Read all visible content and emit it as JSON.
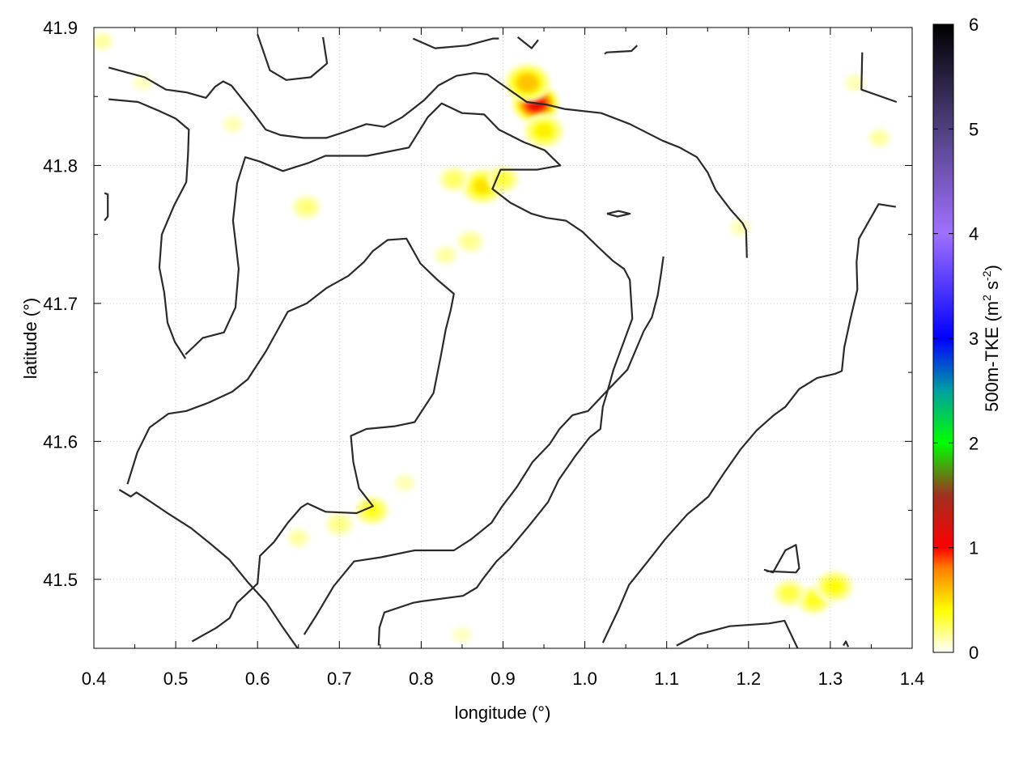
{
  "chart_data": {
    "type": "heatmap",
    "xlabel": "longitude (°)",
    "ylabel": "latitude (°)",
    "colorbar_label": "500m-TKE (m² s⁻²)",
    "colorbar_label_parts": {
      "prefix": "500m-TKE (m",
      "sup1": "2",
      "middle": " s",
      "sup2": "-2",
      "suffix": ")"
    },
    "xlim": [
      0.4,
      1.4
    ],
    "ylim": [
      41.45,
      41.9
    ],
    "x_ticks": [
      "0.4",
      "0.5",
      "0.6",
      "0.7",
      "0.8",
      "0.9",
      "1.0",
      "1.1",
      "1.2",
      "1.3",
      "1.4"
    ],
    "y_ticks": [
      "41.5",
      "41.6",
      "41.7",
      "41.8",
      "41.9"
    ],
    "colorbar_range": [
      0,
      6
    ],
    "colorbar_ticks": [
      "0",
      "1",
      "2",
      "3",
      "4",
      "5",
      "6"
    ],
    "grid": true,
    "colormap_stops": [
      {
        "v": 0.0,
        "color": "#ffffff"
      },
      {
        "v": 0.4,
        "color": "#ffff00"
      },
      {
        "v": 0.8,
        "color": "#ff8000"
      },
      {
        "v": 1.0,
        "color": "#ff0000"
      },
      {
        "v": 1.5,
        "color": "#a03020"
      },
      {
        "v": 2.0,
        "color": "#00ff00"
      },
      {
        "v": 2.5,
        "color": "#00a0a0"
      },
      {
        "v": 3.0,
        "color": "#0000ff"
      },
      {
        "v": 4.0,
        "color": "#a070ff"
      },
      {
        "v": 5.0,
        "color": "#504080"
      },
      {
        "v": 6.0,
        "color": "#000000"
      }
    ],
    "tke_hotspots": [
      {
        "lon": 0.94,
        "lat": 41.845,
        "tke": 1.1
      },
      {
        "lon": 0.93,
        "lat": 41.86,
        "tke": 0.6
      },
      {
        "lon": 0.95,
        "lat": 41.825,
        "tke": 0.45
      },
      {
        "lon": 0.875,
        "lat": 41.785,
        "tke": 0.5
      },
      {
        "lon": 0.84,
        "lat": 41.79,
        "tke": 0.25
      },
      {
        "lon": 0.9,
        "lat": 41.79,
        "tke": 0.3
      },
      {
        "lon": 0.86,
        "lat": 41.745,
        "tke": 0.18
      },
      {
        "lon": 0.83,
        "lat": 41.735,
        "tke": 0.15
      },
      {
        "lon": 0.74,
        "lat": 41.55,
        "tke": 0.35
      },
      {
        "lon": 0.7,
        "lat": 41.54,
        "tke": 0.2
      },
      {
        "lon": 0.65,
        "lat": 41.53,
        "tke": 0.15
      },
      {
        "lon": 0.78,
        "lat": 41.57,
        "tke": 0.12
      },
      {
        "lon": 1.28,
        "lat": 41.485,
        "tke": 0.35
      },
      {
        "lon": 1.25,
        "lat": 41.49,
        "tke": 0.3
      },
      {
        "lon": 1.305,
        "lat": 41.495,
        "tke": 0.4
      },
      {
        "lon": 1.36,
        "lat": 41.82,
        "tke": 0.15
      },
      {
        "lon": 1.33,
        "lat": 41.86,
        "tke": 0.12
      },
      {
        "lon": 0.41,
        "lat": 41.89,
        "tke": 0.15
      },
      {
        "lon": 0.57,
        "lat": 41.83,
        "tke": 0.12
      },
      {
        "lon": 0.66,
        "lat": 41.77,
        "tke": 0.22
      },
      {
        "lon": 1.19,
        "lat": 41.755,
        "tke": 0.12
      },
      {
        "lon": 0.85,
        "lat": 41.46,
        "tke": 0.1
      },
      {
        "lon": 0.46,
        "lat": 41.86,
        "tke": 0.1
      }
    ],
    "contours": [
      [
        [
          0.418,
          41.871
        ],
        [
          0.462,
          41.864
        ],
        [
          0.488,
          41.855
        ],
        [
          0.513,
          41.853
        ],
        [
          0.537,
          41.849
        ],
        [
          0.548,
          41.857
        ],
        [
          0.558,
          41.861
        ],
        [
          0.568,
          41.858
        ],
        [
          0.595,
          41.838
        ],
        [
          0.61,
          41.826
        ],
        [
          0.628,
          41.822
        ],
        [
          0.656,
          41.82
        ],
        [
          0.684,
          41.82
        ],
        [
          0.705,
          41.824
        ],
        [
          0.733,
          41.83
        ],
        [
          0.755,
          41.828
        ],
        [
          0.777,
          41.835
        ],
        [
          0.803,
          41.847
        ],
        [
          0.821,
          41.858
        ],
        [
          0.843,
          41.865
        ],
        [
          0.865,
          41.867
        ],
        [
          0.881,
          41.866
        ],
        [
          0.905,
          41.856
        ],
        [
          0.929,
          41.846
        ],
        [
          0.954,
          41.844
        ],
        [
          0.975,
          41.841
        ],
        [
          1.02,
          41.838
        ],
        [
          1.055,
          41.83
        ],
        [
          1.095,
          41.818
        ],
        [
          1.116,
          41.813
        ],
        [
          1.137,
          41.806
        ],
        [
          1.15,
          41.795
        ],
        [
          1.16,
          41.782
        ],
        [
          1.178,
          41.768
        ],
        [
          1.193,
          41.758
        ],
        [
          1.197,
          41.753
        ],
        [
          1.198,
          41.733
        ]
      ],
      [
        [
          0.418,
          41.848
        ],
        [
          0.454,
          41.846
        ],
        [
          0.478,
          41.84
        ],
        [
          0.5,
          41.834
        ],
        [
          0.516,
          41.826
        ],
        [
          0.515,
          41.808
        ],
        [
          0.513,
          41.788
        ],
        [
          0.498,
          41.771
        ],
        [
          0.483,
          41.75
        ],
        [
          0.48,
          41.726
        ],
        [
          0.486,
          41.708
        ],
        [
          0.49,
          41.686
        ],
        [
          0.499,
          41.672
        ],
        [
          0.512,
          41.66
        ]
      ],
      [
        [
          0.512,
          41.663
        ],
        [
          0.533,
          41.675
        ],
        [
          0.559,
          41.679
        ],
        [
          0.573,
          41.697
        ],
        [
          0.577,
          41.725
        ],
        [
          0.57,
          41.76
        ],
        [
          0.575,
          41.787
        ],
        [
          0.585,
          41.806
        ],
        [
          0.602,
          41.803
        ],
        [
          0.631,
          41.796
        ],
        [
          0.663,
          41.802
        ],
        [
          0.683,
          41.807
        ],
        [
          0.734,
          41.807
        ],
        [
          0.785,
          41.813
        ],
        [
          0.808,
          41.835
        ],
        [
          0.825,
          41.845
        ],
        [
          0.85,
          41.838
        ],
        [
          0.877,
          41.837
        ],
        [
          0.895,
          41.826
        ],
        [
          0.925,
          41.817
        ],
        [
          0.951,
          41.811
        ],
        [
          0.97,
          41.8
        ],
        [
          0.942,
          41.797
        ],
        [
          0.897,
          41.797
        ],
        [
          0.887,
          41.783
        ],
        [
          0.909,
          41.773
        ],
        [
          0.935,
          41.765
        ],
        [
          0.953,
          41.762
        ],
        [
          0.977,
          41.76
        ],
        [
          0.997,
          41.752
        ],
        [
          1.016,
          41.741
        ],
        [
          1.034,
          41.731
        ],
        [
          1.048,
          41.725
        ],
        [
          1.055,
          41.717
        ],
        [
          1.058,
          41.689
        ],
        [
          1.045,
          41.668
        ],
        [
          1.035,
          41.652
        ],
        [
          1.027,
          41.635
        ],
        [
          1.022,
          41.625
        ],
        [
          1.019,
          41.609
        ],
        [
          1.006,
          41.603
        ],
        [
          0.989,
          41.59
        ],
        [
          0.968,
          41.572
        ],
        [
          0.955,
          41.556
        ],
        [
          0.932,
          41.539
        ],
        [
          0.908,
          41.522
        ],
        [
          0.892,
          41.513
        ],
        [
          0.875,
          41.5
        ],
        [
          0.868,
          41.494
        ],
        [
          0.851,
          41.488
        ],
        [
          0.8,
          41.484
        ],
        [
          0.79,
          41.483
        ],
        [
          0.755,
          41.476
        ],
        [
          0.749,
          41.465
        ],
        [
          0.748,
          41.452
        ]
      ],
      [
        [
          0.431,
          41.565
        ],
        [
          0.445,
          41.56
        ],
        [
          0.452,
          41.563
        ],
        [
          0.465,
          41.558
        ],
        [
          0.49,
          41.548
        ],
        [
          0.519,
          41.537
        ],
        [
          0.542,
          41.526
        ],
        [
          0.566,
          41.514
        ],
        [
          0.588,
          41.498
        ],
        [
          0.611,
          41.483
        ],
        [
          0.63,
          41.466
        ],
        [
          0.649,
          41.45
        ]
      ],
      [
        [
          0.413,
          41.78
        ],
        [
          0.417,
          41.779
        ],
        [
          0.417,
          41.763
        ],
        [
          0.413,
          41.76
        ]
      ],
      [
        [
          0.6,
          41.895
        ],
        [
          0.615,
          41.869
        ],
        [
          0.635,
          41.862
        ],
        [
          0.665,
          41.864
        ],
        [
          0.685,
          41.874
        ],
        [
          0.68,
          41.893
        ]
      ],
      [
        [
          0.79,
          41.892
        ],
        [
          0.817,
          41.885
        ],
        [
          0.856,
          41.887
        ],
        [
          0.888,
          41.892
        ],
        [
          0.895,
          41.892
        ]
      ],
      [
        [
          0.918,
          41.893
        ],
        [
          0.935,
          41.885
        ],
        [
          0.943,
          41.891
        ]
      ],
      [
        [
          1.024,
          41.881
        ],
        [
          1.027,
          41.882
        ],
        [
          1.057,
          41.883
        ],
        [
          1.064,
          41.887
        ]
      ],
      [
        [
          1.027,
          41.765
        ],
        [
          1.041,
          41.767
        ],
        [
          1.055,
          41.765
        ],
        [
          1.04,
          41.763
        ],
        [
          1.027,
          41.765
        ]
      ],
      [
        [
          1.339,
          41.882
        ],
        [
          1.338,
          41.855
        ],
        [
          1.381,
          41.846
        ]
      ],
      [
        [
          0.52,
          41.455
        ],
        [
          0.55,
          41.465
        ],
        [
          0.566,
          41.472
        ],
        [
          0.575,
          41.483
        ],
        [
          0.593,
          41.493
        ],
        [
          0.6,
          41.497
        ],
        [
          0.603,
          41.517
        ],
        [
          0.62,
          41.527
        ],
        [
          0.637,
          41.541
        ],
        [
          0.653,
          41.552
        ],
        [
          0.661,
          41.555
        ],
        [
          0.683,
          41.549
        ],
        [
          0.721,
          41.548
        ],
        [
          0.741,
          41.553
        ],
        [
          0.724,
          41.566
        ],
        [
          0.717,
          41.585
        ],
        [
          0.714,
          41.604
        ],
        [
          0.733,
          41.609
        ],
        [
          0.768,
          41.611
        ],
        [
          0.792,
          41.614
        ],
        [
          0.815,
          41.635
        ],
        [
          0.824,
          41.662
        ],
        [
          0.83,
          41.681
        ],
        [
          0.836,
          41.695
        ],
        [
          0.84,
          41.707
        ],
        [
          0.82,
          41.717
        ],
        [
          0.799,
          41.729
        ],
        [
          0.782,
          41.747
        ],
        [
          0.759,
          41.746
        ],
        [
          0.741,
          41.738
        ],
        [
          0.73,
          41.73
        ],
        [
          0.711,
          41.72
        ],
        [
          0.684,
          41.711
        ],
        [
          0.66,
          41.7
        ],
        [
          0.637,
          41.694
        ],
        [
          0.61,
          41.665
        ],
        [
          0.588,
          41.645
        ],
        [
          0.569,
          41.636
        ],
        [
          0.54,
          41.628
        ],
        [
          0.513,
          41.622
        ],
        [
          0.491,
          41.62
        ],
        [
          0.468,
          41.61
        ],
        [
          0.453,
          41.592
        ],
        [
          0.441,
          41.569
        ]
      ],
      [
        [
          0.657,
          41.46
        ],
        [
          0.672,
          41.474
        ],
        [
          0.693,
          41.495
        ],
        [
          0.718,
          41.513
        ],
        [
          0.751,
          41.516
        ],
        [
          0.792,
          41.521
        ],
        [
          0.84,
          41.521
        ],
        [
          0.861,
          41.529
        ],
        [
          0.886,
          41.541
        ],
        [
          0.899,
          41.553
        ],
        [
          0.917,
          41.567
        ],
        [
          0.936,
          41.585
        ],
        [
          0.957,
          41.598
        ],
        [
          0.969,
          41.609
        ],
        [
          0.985,
          41.619
        ],
        [
          1.004,
          41.622
        ],
        [
          1.026,
          41.636
        ],
        [
          1.052,
          41.652
        ],
        [
          1.072,
          41.68
        ],
        [
          1.082,
          41.69
        ],
        [
          1.089,
          41.706
        ],
        [
          1.093,
          41.721
        ],
        [
          1.096,
          41.734
        ]
      ],
      [
        [
          1.022,
          41.454
        ],
        [
          1.041,
          41.478
        ],
        [
          1.054,
          41.496
        ],
        [
          1.077,
          41.513
        ],
        [
          1.098,
          41.529
        ],
        [
          1.125,
          41.547
        ],
        [
          1.151,
          41.56
        ],
        [
          1.17,
          41.577
        ],
        [
          1.19,
          41.594
        ],
        [
          1.21,
          41.608
        ],
        [
          1.231,
          41.619
        ],
        [
          1.245,
          41.625
        ],
        [
          1.262,
          41.638
        ],
        [
          1.284,
          41.646
        ],
        [
          1.306,
          41.649
        ],
        [
          1.314,
          41.651
        ],
        [
          1.317,
          41.668
        ],
        [
          1.325,
          41.69
        ],
        [
          1.333,
          41.71
        ],
        [
          1.332,
          41.73
        ],
        [
          1.335,
          41.747
        ],
        [
          1.359,
          41.772
        ],
        [
          1.38,
          41.77
        ]
      ],
      [
        [
          1.112,
          41.452
        ],
        [
          1.138,
          41.46
        ],
        [
          1.177,
          41.466
        ],
        [
          1.225,
          41.468
        ],
        [
          1.244,
          41.47
        ],
        [
          1.26,
          41.45
        ]
      ],
      [
        [
          1.219,
          41.507
        ],
        [
          1.23,
          41.505
        ],
        [
          1.245,
          41.521
        ],
        [
          1.258,
          41.525
        ],
        [
          1.262,
          41.508
        ],
        [
          1.258,
          41.505
        ],
        [
          1.222,
          41.506
        ]
      ],
      [
        [
          1.316,
          41.452
        ],
        [
          1.319,
          41.455
        ],
        [
          1.322,
          41.451
        ]
      ]
    ]
  }
}
